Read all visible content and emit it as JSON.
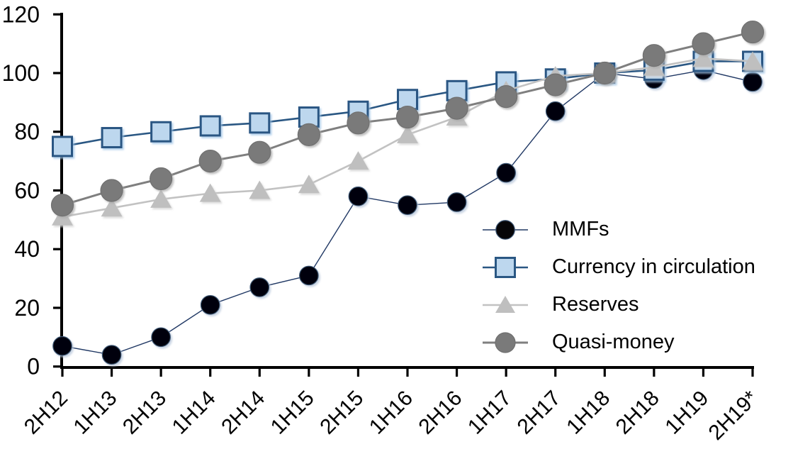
{
  "chart_data": {
    "type": "line",
    "title": "",
    "xlabel": "",
    "ylabel": "",
    "categories": [
      "2H12",
      "1H13",
      "2H13",
      "1H14",
      "2H14",
      "1H15",
      "2H15",
      "1H16",
      "2H16",
      "1H17",
      "2H17",
      "1H18",
      "2H18",
      "1H19",
      "2H19*"
    ],
    "series": [
      {
        "name": "MMFs",
        "marker": "circle",
        "marker_fill": "#060608",
        "marker_edge": "#3e5877",
        "line_color": "#203864",
        "line_width": 1.4,
        "marker_size": 26.5,
        "shadow_color": "#b8c6da",
        "values": [
          7,
          4,
          10,
          21,
          27,
          31,
          58,
          55,
          56,
          66,
          87,
          100,
          98,
          101,
          97
        ]
      },
      {
        "name": "Currency in circulation",
        "marker": "square",
        "marker_fill": "#bdd7ee",
        "marker_edge": "#2a5783",
        "line_color": "#2a5783",
        "line_width": 2.6,
        "marker_size": 27,
        "shadow_color": "#9dc3e6",
        "values": [
          75,
          78,
          80,
          82,
          83,
          85,
          87,
          91,
          94,
          97,
          98,
          100,
          101,
          104,
          104
        ]
      },
      {
        "name": "Reserves",
        "marker": "triangle",
        "marker_fill": "#bfbfbf",
        "marker_edge": "#bfbfbf",
        "line_color": "#c2c2c2",
        "line_width": 2.6,
        "marker_size": 30,
        "shadow_color": "#d2d2d2",
        "values": [
          51,
          54,
          57,
          59,
          60,
          62,
          70,
          79,
          85,
          94,
          99,
          100,
          102,
          105,
          104
        ]
      },
      {
        "name": "Quasi-money",
        "marker": "circle",
        "marker_fill": "#7a7a7a",
        "marker_edge": "#6f6f6f",
        "line_color": "#7f7f7f",
        "line_width": 3,
        "marker_size": 31,
        "shadow_color": "#ababab",
        "values": [
          55,
          60,
          64,
          70,
          73,
          79,
          83,
          85,
          88,
          92,
          96,
          100,
          106,
          110,
          114
        ]
      }
    ],
    "ylim": [
      0,
      120
    ],
    "yticks": [
      0,
      20,
      40,
      60,
      80,
      100,
      120
    ],
    "grid": false,
    "axis_color": "#000000",
    "legend_position": "inside-middle-right",
    "x_tick_label_rotation_deg": 45
  }
}
